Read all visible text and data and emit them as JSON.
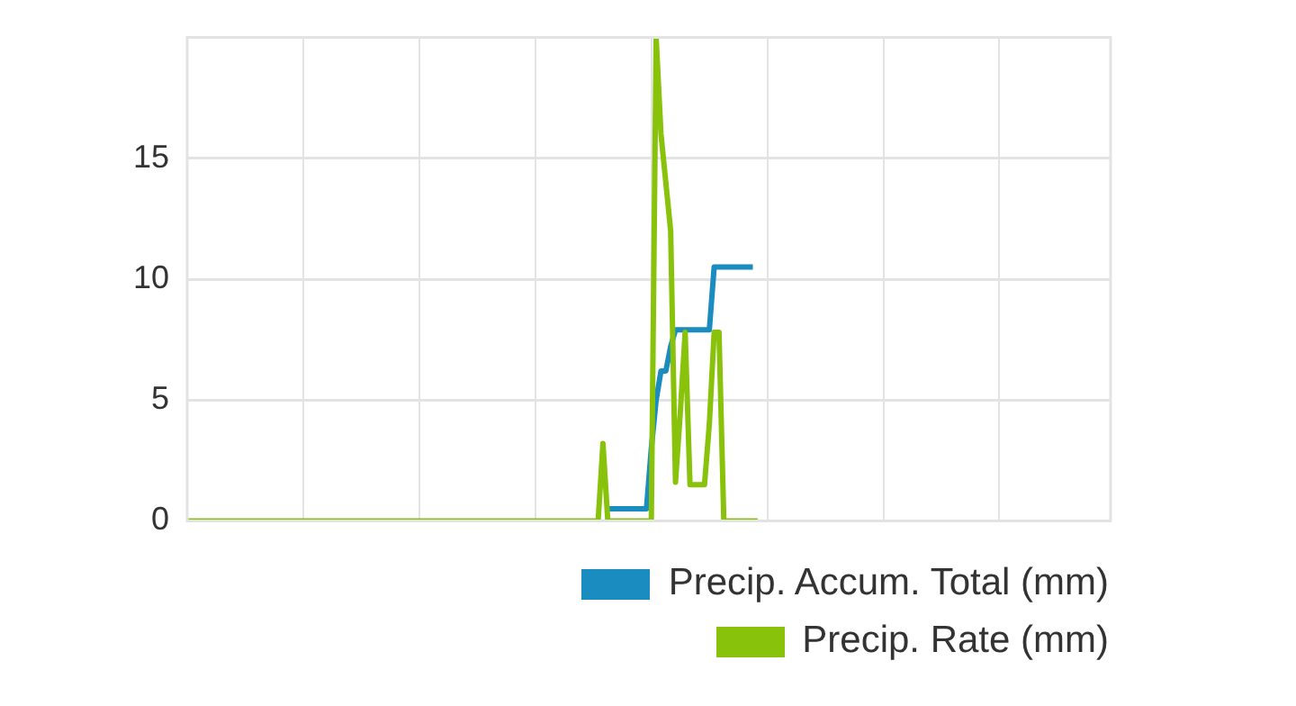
{
  "chart_data": {
    "type": "line",
    "categories": [
      null,
      null,
      null,
      null,
      null,
      null,
      null,
      null,
      null,
      null,
      null,
      null,
      null,
      null,
      null,
      null,
      null,
      null,
      null,
      null,
      null,
      null,
      null,
      null,
      null,
      null,
      null,
      null,
      null,
      null,
      null,
      null,
      null,
      null,
      null,
      null,
      null,
      null,
      null,
      null,
      null,
      null,
      null,
      null,
      null,
      null,
      null,
      null,
      null,
      null,
      null,
      null,
      null,
      null,
      null,
      null,
      null,
      null,
      null,
      null,
      null,
      null,
      null,
      null,
      null,
      null,
      null,
      null,
      null,
      null,
      null,
      null,
      null,
      null,
      null,
      null,
      null,
      null,
      null,
      null,
      null,
      null,
      null,
      null,
      null,
      null,
      null,
      null,
      null,
      null,
      null,
      null,
      null,
      null,
      null,
      null,
      null,
      null,
      null,
      null,
      null,
      null,
      null,
      null,
      null,
      null,
      null,
      null,
      null,
      null,
      null,
      null,
      null,
      null,
      null,
      null,
      null,
      null,
      null,
      null,
      null,
      null,
      null,
      null,
      null,
      null,
      null,
      null,
      null,
      null,
      null,
      null,
      null,
      null,
      null,
      null,
      null,
      null,
      null,
      null,
      null,
      null,
      null,
      null,
      null,
      null,
      null,
      null,
      null,
      null,
      null,
      null,
      null,
      null,
      null,
      null,
      null,
      null,
      null,
      null,
      null,
      null,
      null,
      null,
      null,
      null,
      null,
      null,
      null,
      null,
      null,
      null,
      null,
      null,
      null,
      null,
      null,
      null,
      null,
      null,
      null,
      null,
      null,
      null,
      null,
      null,
      null,
      null,
      null,
      null,
      null,
      null
    ],
    "series": [
      {
        "name": "Precip. Accum. Total (mm)",
        "color": "#1a8cc0",
        "values": [
          null,
          null,
          null,
          null,
          null,
          null,
          null,
          null,
          null,
          null,
          null,
          null,
          null,
          null,
          null,
          null,
          null,
          null,
          null,
          null,
          null,
          null,
          null,
          null,
          null,
          null,
          null,
          null,
          null,
          null,
          null,
          null,
          null,
          null,
          null,
          null,
          null,
          null,
          null,
          null,
          null,
          null,
          null,
          null,
          null,
          null,
          null,
          null,
          null,
          null,
          null,
          null,
          null,
          null,
          null,
          null,
          null,
          null,
          null,
          null,
          null,
          null,
          null,
          null,
          null,
          null,
          null,
          null,
          null,
          null,
          null,
          null,
          null,
          null,
          null,
          null,
          null,
          null,
          null,
          null,
          null,
          null,
          null,
          null,
          null,
          null,
          null,
          0.5,
          0.5,
          0.5,
          0.5,
          0.5,
          0.5,
          0.5,
          0.5,
          0.5,
          3,
          5,
          6.2,
          6.2,
          7.2,
          7.9,
          7.9,
          7.9,
          7.9,
          7.9,
          7.9,
          7.9,
          7.9,
          10.5,
          10.5,
          10.5,
          10.5,
          10.5,
          10.5,
          10.5,
          10.5,
          10.5,
          null,
          null,
          null,
          null,
          null,
          null,
          null,
          null,
          null,
          null,
          null,
          null,
          null,
          null,
          null,
          null,
          null,
          null,
          null,
          null,
          null,
          null,
          null,
          null,
          null,
          null,
          null,
          null,
          null,
          null,
          null,
          null,
          null,
          null,
          null,
          null,
          null,
          null,
          null,
          null,
          null,
          null,
          null,
          null,
          null,
          null,
          null,
          null,
          null,
          null,
          null,
          null,
          null,
          null,
          null,
          null,
          null,
          null,
          null,
          null,
          null,
          null,
          null,
          null,
          null,
          null,
          null,
          null,
          null,
          null,
          null,
          null,
          null,
          null
        ]
      },
      {
        "name": "Precip. Rate (mm)",
        "color": "#88c20a",
        "values": [
          0,
          0,
          0,
          0,
          0,
          0,
          0,
          0,
          0,
          0,
          0,
          0,
          0,
          0,
          0,
          0,
          0,
          0,
          0,
          0,
          0,
          0,
          0,
          0,
          0,
          0,
          0,
          0,
          0,
          0,
          0,
          0,
          0,
          0,
          0,
          0,
          0,
          0,
          0,
          0,
          0,
          0,
          0,
          0,
          0,
          0,
          0,
          0,
          0,
          0,
          0,
          0,
          0,
          0,
          0,
          0,
          0,
          0,
          0,
          0,
          0,
          0,
          0,
          0,
          0,
          0,
          0,
          0,
          0,
          0,
          0,
          0,
          0,
          0,
          0,
          0,
          0,
          0,
          0,
          0,
          0,
          0,
          0,
          0,
          0,
          0,
          3.2,
          0,
          0,
          0,
          0,
          0,
          0,
          0,
          0,
          0,
          0,
          20,
          16,
          14,
          12,
          1.6,
          4.5,
          7.8,
          1.5,
          1.5,
          1.5,
          1.5,
          4,
          7.8,
          7.8,
          0,
          0,
          0,
          0,
          0,
          0,
          0,
          0,
          null,
          null,
          null,
          null,
          null,
          null,
          null,
          null,
          null,
          null,
          null,
          null,
          null,
          null,
          null,
          null,
          null,
          null,
          null,
          null,
          null,
          null,
          null,
          null,
          null,
          null,
          null,
          null,
          null,
          null,
          null,
          null,
          null,
          null,
          null,
          null,
          null,
          null,
          null,
          null,
          null,
          null,
          null,
          null,
          null,
          null,
          null,
          null,
          null,
          null,
          null,
          null,
          null,
          null,
          null,
          null,
          null,
          null,
          null,
          null,
          null,
          null,
          null,
          null,
          null,
          null,
          null,
          null,
          null,
          null,
          null,
          null,
          null
        ]
      }
    ],
    "ylim": [
      0,
      20
    ],
    "yticks": [
      0,
      5,
      10,
      15
    ],
    "grid": true,
    "legend": "bottom right",
    "tick_labels": "y"
  }
}
